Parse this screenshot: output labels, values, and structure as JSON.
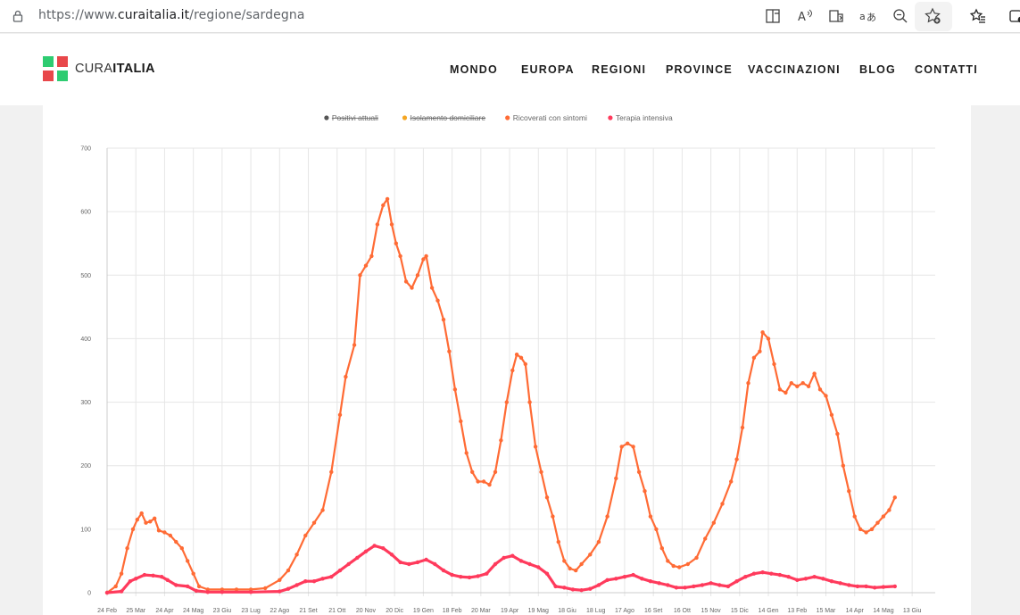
{
  "browser": {
    "url_prefix": "https://www.",
    "url_host": "curaitalia.it",
    "url_path": "/regione/sardegna",
    "toolbar_icons": [
      "split-screen-icon",
      "read-aloud-icon",
      "immersive-reader-icon",
      "translate-icon",
      "zoom-icon",
      "add-favorite-icon",
      "favorites-icon",
      "collections-icon"
    ]
  },
  "site": {
    "brand_light": "CURA",
    "brand_bold": "ITALIA",
    "nav": [
      "MONDO",
      "EUROPA",
      "REGIONI",
      "PROVINCE",
      "VACCINAZIONI",
      "BLOG",
      "CONTATTI"
    ],
    "colors": {
      "logo_green": "#2ecc71",
      "logo_red": "#e8474a"
    }
  },
  "chart_data": {
    "type": "line",
    "legend": [
      {
        "label": "Positivi attuali",
        "color": "#555555",
        "hidden": true
      },
      {
        "label": "Isolamento domiciliare",
        "color": "#f5a623",
        "hidden": true
      },
      {
        "label": "Ricoverati con sintomi",
        "color": "#ff6b35",
        "hidden": false
      },
      {
        "label": "Terapia intensiva",
        "color": "#ff3a5c",
        "hidden": false
      }
    ],
    "ylim": [
      0,
      700
    ],
    "yticks": [
      0,
      100,
      200,
      300,
      400,
      500,
      600,
      700
    ],
    "x_labels": [
      "24 Feb",
      "25 Mar",
      "24 Apr",
      "24 Mag",
      "23 Giu",
      "23 Lug",
      "22 Ago",
      "21 Set",
      "21 Ott",
      "20 Nov",
      "20 Dic",
      "19 Gen",
      "18 Feb",
      "20 Mar",
      "19 Apr",
      "19 Mag",
      "18 Giu",
      "18 Lug",
      "17 Ago",
      "16 Set",
      "16 Ott",
      "15 Nov",
      "15 Dic",
      "14 Gen",
      "13 Feb",
      "15 Mar",
      "14 Apr",
      "14 Mag",
      "13 Giu"
    ],
    "series": [
      {
        "name": "Ricoverati con sintomi",
        "color": "#ff6b35",
        "points": [
          [
            0,
            0
          ],
          [
            0.3,
            10
          ],
          [
            0.5,
            30
          ],
          [
            0.7,
            70
          ],
          [
            0.9,
            100
          ],
          [
            1.05,
            115
          ],
          [
            1.2,
            125
          ],
          [
            1.35,
            110
          ],
          [
            1.5,
            112
          ],
          [
            1.65,
            117
          ],
          [
            1.8,
            98
          ],
          [
            2.0,
            95
          ],
          [
            2.2,
            90
          ],
          [
            2.4,
            80
          ],
          [
            2.6,
            70
          ],
          [
            2.8,
            50
          ],
          [
            3.0,
            30
          ],
          [
            3.2,
            10
          ],
          [
            3.5,
            5
          ],
          [
            4.0,
            5
          ],
          [
            4.5,
            5
          ],
          [
            5.0,
            5
          ],
          [
            5.5,
            7
          ],
          [
            6.0,
            20
          ],
          [
            6.3,
            35
          ],
          [
            6.6,
            60
          ],
          [
            6.9,
            90
          ],
          [
            7.2,
            110
          ],
          [
            7.5,
            130
          ],
          [
            7.8,
            190
          ],
          [
            8.1,
            280
          ],
          [
            8.3,
            340
          ],
          [
            8.6,
            390
          ],
          [
            8.8,
            500
          ],
          [
            9.0,
            515
          ],
          [
            9.2,
            530
          ],
          [
            9.4,
            580
          ],
          [
            9.6,
            610
          ],
          [
            9.75,
            620
          ],
          [
            9.9,
            580
          ],
          [
            10.05,
            550
          ],
          [
            10.2,
            530
          ],
          [
            10.4,
            490
          ],
          [
            10.6,
            480
          ],
          [
            10.8,
            500
          ],
          [
            11.0,
            525
          ],
          [
            11.1,
            530
          ],
          [
            11.3,
            480
          ],
          [
            11.5,
            460
          ],
          [
            11.7,
            430
          ],
          [
            11.9,
            380
          ],
          [
            12.1,
            320
          ],
          [
            12.3,
            270
          ],
          [
            12.5,
            220
          ],
          [
            12.7,
            190
          ],
          [
            12.9,
            175
          ],
          [
            13.1,
            175
          ],
          [
            13.3,
            170
          ],
          [
            13.5,
            190
          ],
          [
            13.7,
            240
          ],
          [
            13.9,
            300
          ],
          [
            14.1,
            350
          ],
          [
            14.25,
            375
          ],
          [
            14.4,
            370
          ],
          [
            14.55,
            360
          ],
          [
            14.7,
            300
          ],
          [
            14.9,
            230
          ],
          [
            15.1,
            190
          ],
          [
            15.3,
            150
          ],
          [
            15.5,
            120
          ],
          [
            15.7,
            80
          ],
          [
            15.9,
            50
          ],
          [
            16.1,
            38
          ],
          [
            16.3,
            35
          ],
          [
            16.5,
            45
          ],
          [
            16.8,
            60
          ],
          [
            17.1,
            80
          ],
          [
            17.4,
            120
          ],
          [
            17.7,
            180
          ],
          [
            17.9,
            230
          ],
          [
            18.1,
            235
          ],
          [
            18.3,
            230
          ],
          [
            18.5,
            190
          ],
          [
            18.7,
            160
          ],
          [
            18.9,
            120
          ],
          [
            19.1,
            100
          ],
          [
            19.3,
            70
          ],
          [
            19.5,
            50
          ],
          [
            19.7,
            42
          ],
          [
            19.9,
            40
          ],
          [
            20.2,
            45
          ],
          [
            20.5,
            55
          ],
          [
            20.8,
            85
          ],
          [
            21.1,
            110
          ],
          [
            21.4,
            140
          ],
          [
            21.7,
            175
          ],
          [
            21.9,
            210
          ],
          [
            22.1,
            260
          ],
          [
            22.3,
            330
          ],
          [
            22.5,
            370
          ],
          [
            22.7,
            380
          ],
          [
            22.8,
            410
          ],
          [
            23.0,
            400
          ],
          [
            23.2,
            360
          ],
          [
            23.4,
            320
          ],
          [
            23.6,
            315
          ],
          [
            23.8,
            330
          ],
          [
            24.0,
            325
          ],
          [
            24.2,
            330
          ],
          [
            24.4,
            325
          ],
          [
            24.6,
            345
          ],
          [
            24.8,
            320
          ],
          [
            25.0,
            310
          ],
          [
            25.2,
            280
          ],
          [
            25.4,
            250
          ],
          [
            25.6,
            200
          ],
          [
            25.8,
            160
          ],
          [
            26.0,
            120
          ],
          [
            26.2,
            100
          ],
          [
            26.4,
            95
          ],
          [
            26.6,
            100
          ],
          [
            26.8,
            110
          ],
          [
            27.0,
            120
          ],
          [
            27.2,
            130
          ],
          [
            27.4,
            150
          ]
        ]
      },
      {
        "name": "Terapia intensiva",
        "color": "#ff3a5c",
        "points": [
          [
            0,
            0
          ],
          [
            0.5,
            2
          ],
          [
            0.8,
            18
          ],
          [
            1.0,
            22
          ],
          [
            1.3,
            28
          ],
          [
            1.6,
            27
          ],
          [
            1.9,
            25
          ],
          [
            2.1,
            20
          ],
          [
            2.4,
            12
          ],
          [
            2.8,
            10
          ],
          [
            3.1,
            3
          ],
          [
            3.5,
            1
          ],
          [
            4.0,
            1
          ],
          [
            5.0,
            1
          ],
          [
            6.0,
            2
          ],
          [
            6.3,
            6
          ],
          [
            6.6,
            12
          ],
          [
            6.9,
            18
          ],
          [
            7.2,
            18
          ],
          [
            7.5,
            22
          ],
          [
            7.8,
            25
          ],
          [
            8.1,
            35
          ],
          [
            8.4,
            45
          ],
          [
            8.7,
            55
          ],
          [
            9.0,
            65
          ],
          [
            9.3,
            74
          ],
          [
            9.6,
            70
          ],
          [
            9.9,
            60
          ],
          [
            10.2,
            48
          ],
          [
            10.5,
            45
          ],
          [
            10.8,
            48
          ],
          [
            11.1,
            52
          ],
          [
            11.4,
            45
          ],
          [
            11.7,
            35
          ],
          [
            12.0,
            28
          ],
          [
            12.3,
            25
          ],
          [
            12.6,
            24
          ],
          [
            12.9,
            26
          ],
          [
            13.2,
            30
          ],
          [
            13.5,
            45
          ],
          [
            13.8,
            55
          ],
          [
            14.1,
            58
          ],
          [
            14.4,
            50
          ],
          [
            14.7,
            45
          ],
          [
            15.0,
            40
          ],
          [
            15.3,
            30
          ],
          [
            15.6,
            10
          ],
          [
            15.9,
            8
          ],
          [
            16.2,
            5
          ],
          [
            16.5,
            4
          ],
          [
            16.8,
            6
          ],
          [
            17.1,
            12
          ],
          [
            17.4,
            20
          ],
          [
            17.7,
            22
          ],
          [
            18.0,
            25
          ],
          [
            18.3,
            28
          ],
          [
            18.6,
            22
          ],
          [
            18.9,
            18
          ],
          [
            19.2,
            15
          ],
          [
            19.5,
            12
          ],
          [
            19.8,
            8
          ],
          [
            20.1,
            8
          ],
          [
            20.4,
            10
          ],
          [
            20.7,
            12
          ],
          [
            21.0,
            15
          ],
          [
            21.3,
            12
          ],
          [
            21.6,
            10
          ],
          [
            21.9,
            18
          ],
          [
            22.2,
            25
          ],
          [
            22.5,
            30
          ],
          [
            22.8,
            32
          ],
          [
            23.1,
            30
          ],
          [
            23.4,
            28
          ],
          [
            23.7,
            25
          ],
          [
            24.0,
            20
          ],
          [
            24.3,
            22
          ],
          [
            24.6,
            25
          ],
          [
            24.9,
            22
          ],
          [
            25.2,
            18
          ],
          [
            25.5,
            15
          ],
          [
            25.8,
            12
          ],
          [
            26.1,
            10
          ],
          [
            26.4,
            10
          ],
          [
            26.7,
            8
          ],
          [
            27.0,
            9
          ],
          [
            27.4,
            10
          ]
        ]
      }
    ]
  }
}
